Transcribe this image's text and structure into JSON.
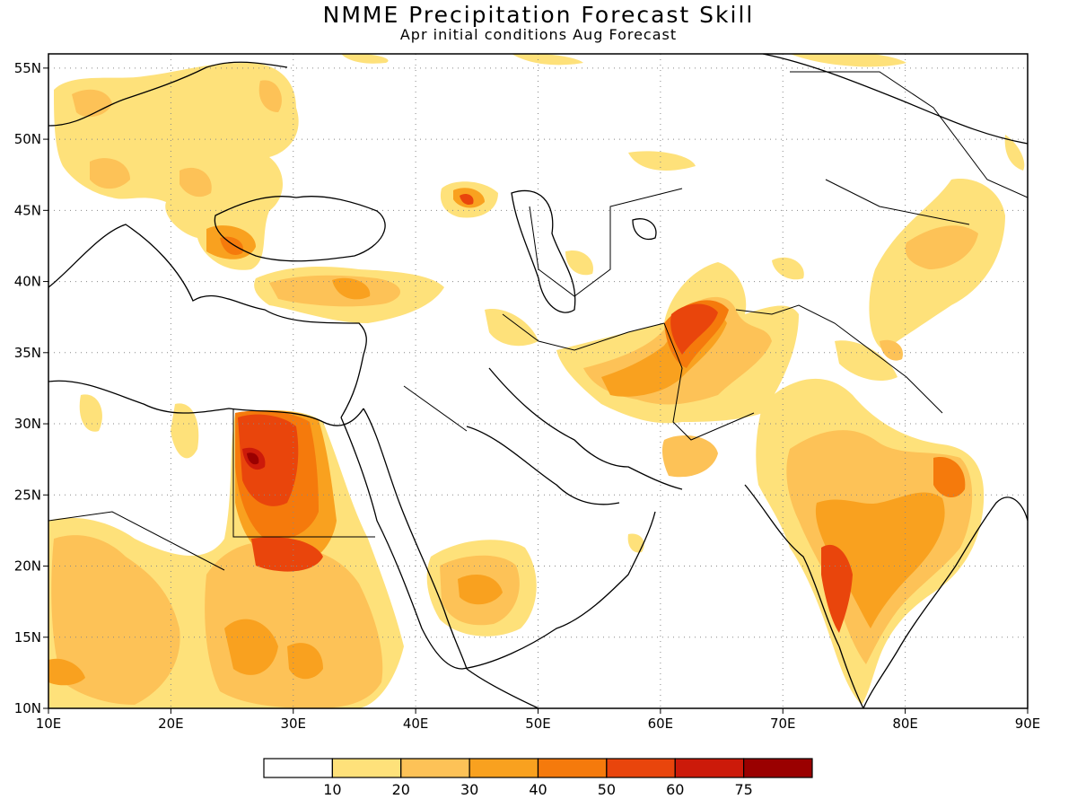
{
  "title": "NMME Precipitation Forecast Skill",
  "subtitle": "Apr initial conditions  Aug Forecast",
  "map": {
    "lon_range": [
      10,
      90
    ],
    "lat_range": [
      10,
      56
    ],
    "lon_ticks": [
      "10E",
      "20E",
      "30E",
      "40E",
      "50E",
      "60E",
      "70E",
      "80E",
      "90E"
    ],
    "lat_ticks": [
      "10N",
      "15N",
      "20N",
      "25N",
      "30N",
      "35N",
      "40N",
      "45N",
      "50N",
      "55N"
    ]
  },
  "colorbar": {
    "colors": [
      "#ffffff",
      "#fee17a",
      "#fdc257",
      "#f9a11f",
      "#f57a0c",
      "#e9450c",
      "#cc1a0a",
      "#9a0000"
    ],
    "labels": [
      "10",
      "20",
      "30",
      "40",
      "50",
      "60",
      "75"
    ]
  }
}
